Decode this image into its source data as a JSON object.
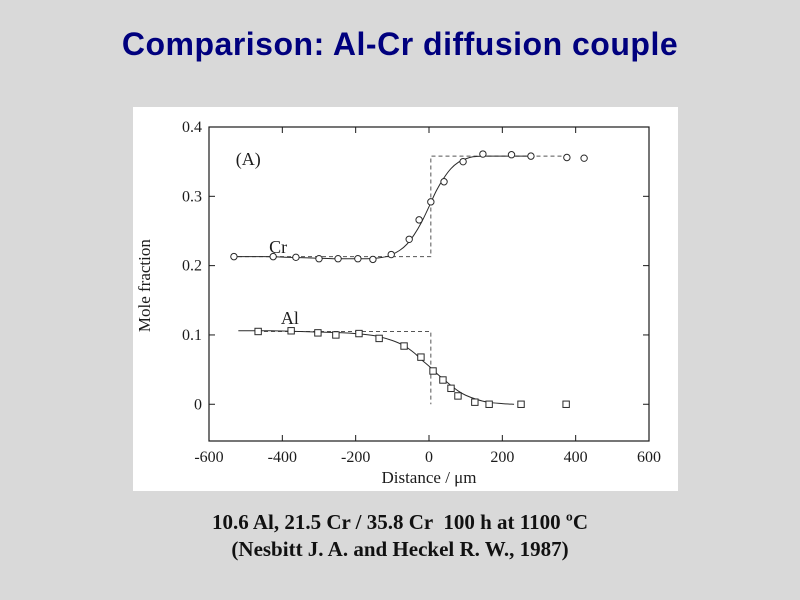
{
  "title": "Comparison: Al-Cr diffusion couple",
  "colors": {
    "background": "#d9d9d9",
    "title": "#00007e",
    "panel": "#ffffff",
    "ink": "#2a2a2a",
    "dashed": "#555555"
  },
  "caption": {
    "line1": "10.6 Al, 21.5 Cr / 35.8 Cr  100 h at 1100 ºC",
    "line2": "(Nesbitt J. A. and Heckel R. W., 1987)"
  },
  "chart_data": {
    "type": "scatter",
    "panel_label": "(A)",
    "xlabel": "Distance / μm",
    "ylabel": "Mole fraction",
    "xlim": [
      -600,
      600
    ],
    "ylim": [
      -0.053,
      0.4
    ],
    "xticks": [
      -600,
      -400,
      -200,
      0,
      200,
      400,
      600
    ],
    "yticks": [
      0,
      0.1,
      0.2,
      0.3,
      0.4
    ],
    "grid": false,
    "legend": "inline-labels",
    "series": [
      {
        "name": "Cr",
        "marker": "circle",
        "label_pos": [
          -436,
          0.218
        ],
        "plateau_left": 0.213,
        "plateau_right": 0.358,
        "points": [
          [
            -532,
            0.213
          ],
          [
            -425,
            0.213
          ],
          [
            -363,
            0.212
          ],
          [
            -300,
            0.21
          ],
          [
            -248,
            0.21
          ],
          [
            -194,
            0.21
          ],
          [
            -153,
            0.209
          ],
          [
            -103,
            0.216
          ],
          [
            -54,
            0.238
          ],
          [
            -27,
            0.266
          ],
          [
            5,
            0.292
          ],
          [
            41,
            0.321
          ],
          [
            93,
            0.35
          ],
          [
            147,
            0.361
          ],
          [
            225,
            0.36
          ],
          [
            278,
            0.358
          ],
          [
            376,
            0.356
          ],
          [
            423,
            0.355
          ]
        ],
        "fit_line": [
          [
            -532,
            0.213
          ],
          [
            -450,
            0.213
          ],
          [
            -380,
            0.212
          ],
          [
            -320,
            0.211
          ],
          [
            -260,
            0.21
          ],
          [
            -210,
            0.21
          ],
          [
            -170,
            0.21
          ],
          [
            -140,
            0.211
          ],
          [
            -110,
            0.214
          ],
          [
            -80,
            0.222
          ],
          [
            -60,
            0.231
          ],
          [
            -40,
            0.245
          ],
          [
            -20,
            0.263
          ],
          [
            0,
            0.285
          ],
          [
            20,
            0.308
          ],
          [
            40,
            0.326
          ],
          [
            60,
            0.34
          ],
          [
            80,
            0.349
          ],
          [
            100,
            0.354
          ],
          [
            120,
            0.357
          ],
          [
            150,
            0.358
          ],
          [
            200,
            0.358
          ],
          [
            270,
            0.358
          ]
        ],
        "step_line": [
          [
            -540,
            0.213
          ],
          [
            5,
            0.213
          ],
          [
            5,
            0.358
          ],
          [
            362,
            0.358
          ]
        ]
      },
      {
        "name": "Al",
        "marker": "square",
        "label_pos": [
          -404,
          0.116
        ],
        "plateau_left": 0.105,
        "plateau_right": 0.0,
        "points": [
          [
            -466,
            0.105
          ],
          [
            -376,
            0.106
          ],
          [
            -303,
            0.103
          ],
          [
            -254,
            0.1
          ],
          [
            -191,
            0.102
          ],
          [
            -136,
            0.095
          ],
          [
            -68,
            0.084
          ],
          [
            -22,
            0.068
          ],
          [
            11,
            0.048
          ],
          [
            38,
            0.035
          ],
          [
            60,
            0.023
          ],
          [
            79,
            0.012
          ],
          [
            125,
            0.003
          ],
          [
            164,
            0.0
          ],
          [
            251,
            0.0
          ],
          [
            374,
            0.0
          ]
        ],
        "fit_line": [
          [
            -520,
            0.106
          ],
          [
            -430,
            0.106
          ],
          [
            -350,
            0.105
          ],
          [
            -290,
            0.104
          ],
          [
            -230,
            0.103
          ],
          [
            -180,
            0.101
          ],
          [
            -140,
            0.098
          ],
          [
            -100,
            0.092
          ],
          [
            -70,
            0.085
          ],
          [
            -40,
            0.074
          ],
          [
            -20,
            0.064
          ],
          [
            0,
            0.055
          ],
          [
            20,
            0.045
          ],
          [
            40,
            0.036
          ],
          [
            60,
            0.027
          ],
          [
            80,
            0.019
          ],
          [
            100,
            0.013
          ],
          [
            130,
            0.007
          ],
          [
            160,
            0.003
          ],
          [
            200,
            0.001
          ],
          [
            232,
            0.0
          ]
        ],
        "step_line": [
          [
            -450,
            0.105
          ],
          [
            5,
            0.105
          ],
          [
            5,
            0.0
          ]
        ]
      }
    ]
  }
}
